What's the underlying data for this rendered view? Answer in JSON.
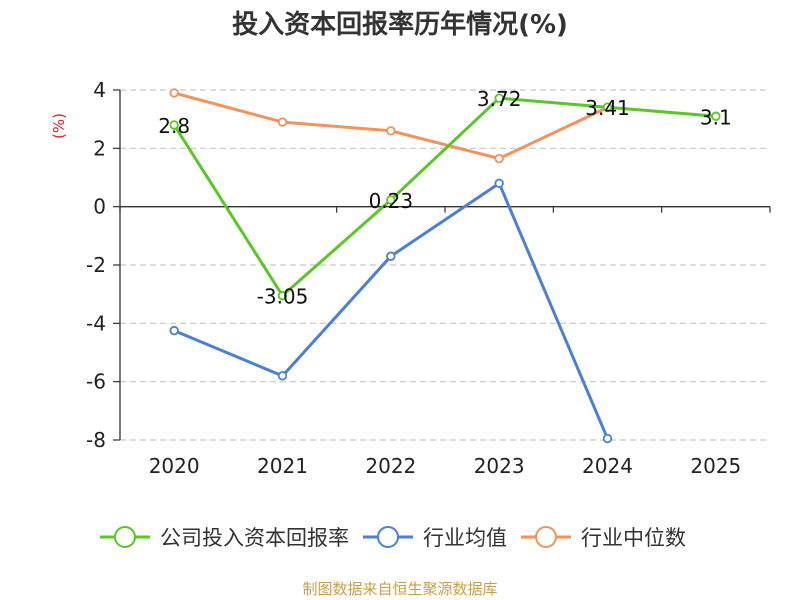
{
  "chart_data": {
    "type": "line",
    "title": "投入资本回报率历年情况(%)",
    "ylabel": "(%)",
    "xlabel": "",
    "categories": [
      "2020",
      "2021",
      "2022",
      "2023",
      "2024",
      "2025"
    ],
    "ylim": [
      -8,
      4
    ],
    "yticks": [
      4,
      2,
      0,
      -2,
      -4,
      -6,
      -8
    ],
    "grid": true,
    "legend_position": "bottom",
    "series": [
      {
        "name": "公司投入资本回报率",
        "color": "#5BC724",
        "values": [
          2.8,
          -3.05,
          0.23,
          3.72,
          3.41,
          3.1
        ],
        "labels": [
          "2.8",
          "-3.05",
          "0.23",
          "3.72",
          "3.41",
          "3.1"
        ]
      },
      {
        "name": "行业均值",
        "color": "#4A7FDA",
        "values": [
          -4.25,
          -5.8,
          -1.7,
          0.8,
          -7.95,
          null
        ]
      },
      {
        "name": "行业中位数",
        "color": "#F5915A",
        "values": [
          3.9,
          2.9,
          2.6,
          1.65,
          3.4,
          null
        ]
      }
    ]
  },
  "ylabel_color": "#E02020",
  "source": {
    "text": "制图数据来自恒生聚源数据库",
    "color": "#C8A048"
  }
}
